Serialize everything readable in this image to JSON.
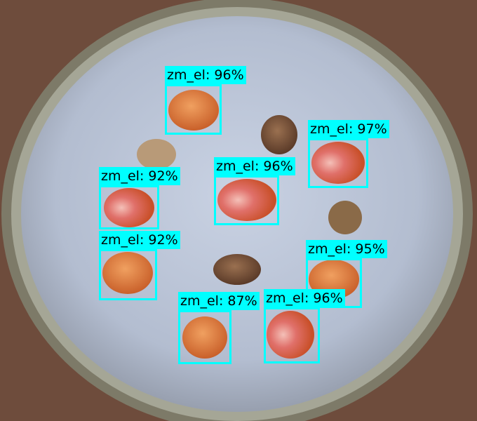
{
  "image": {
    "description_colors": {
      "table": "#6b4a3a",
      "dish_rim": "#8a8a78",
      "substrate": "#b9c3d6",
      "box": "#00ffff"
    }
  },
  "detections": [
    {
      "label": "zm_el: 96%"
    },
    {
      "label": "zm_el: 97%"
    },
    {
      "label": "zm_el: 96%"
    },
    {
      "label": "zm_el: 92%"
    },
    {
      "label": "zm_el: 92%"
    },
    {
      "label": "zm_el: 95%"
    },
    {
      "label": "zm_el: 87%"
    },
    {
      "label": "zm_el: 96%"
    }
  ]
}
